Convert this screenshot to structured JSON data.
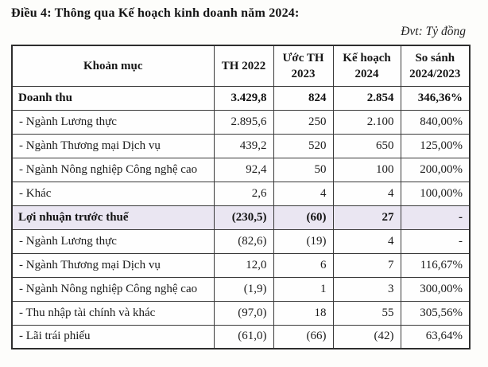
{
  "title": "Điều 4: Thông qua Kế hoạch kinh doanh năm 2024:",
  "unit_note": "Đvt: Tỷ đồng",
  "table": {
    "columns": [
      "Khoản mục",
      "TH 2022",
      "Ước TH 2023",
      "Kế hoạch 2024",
      "So sánh 2024/2023"
    ],
    "rows": [
      {
        "label": "Doanh thu",
        "bold": true,
        "highlight": false,
        "values": [
          "3.429,8",
          "824",
          "2.854",
          "346,36%"
        ]
      },
      {
        "label": "- Ngành Lương thực",
        "bold": false,
        "highlight": false,
        "values": [
          "2.895,6",
          "250",
          "2.100",
          "840,00%"
        ]
      },
      {
        "label": "- Ngành Thương mại Dịch vụ",
        "bold": false,
        "highlight": false,
        "values": [
          "439,2",
          "520",
          "650",
          "125,00%"
        ]
      },
      {
        "label": "- Ngành Nông nghiệp Công nghệ cao",
        "bold": false,
        "highlight": false,
        "values": [
          "92,4",
          "50",
          "100",
          "200,00%"
        ]
      },
      {
        "label": "- Khác",
        "bold": false,
        "highlight": false,
        "values": [
          "2,6",
          "4",
          "4",
          "100,00%"
        ]
      },
      {
        "label": "Lợi nhuận trước thuế",
        "bold": true,
        "highlight": true,
        "values": [
          "(230,5)",
          "(60)",
          "27",
          "-"
        ]
      },
      {
        "label": "- Ngành Lương thực",
        "bold": false,
        "highlight": false,
        "values": [
          "(82,6)",
          "(19)",
          "4",
          "-"
        ]
      },
      {
        "label": "- Ngành Thương mại Dịch vụ",
        "bold": false,
        "highlight": false,
        "values": [
          "12,0",
          "6",
          "7",
          "116,67%"
        ]
      },
      {
        "label": "- Ngành Nông nghiệp Công nghệ cao",
        "bold": false,
        "highlight": false,
        "values": [
          "(1,9)",
          "1",
          "3",
          "300,00%"
        ]
      },
      {
        "label": "- Thu nhập tài chính và khác",
        "bold": false,
        "highlight": false,
        "values": [
          "(97,0)",
          "18",
          "55",
          "305,56%"
        ]
      },
      {
        "label": "- Lãi trái phiếu",
        "bold": false,
        "highlight": false,
        "values": [
          "(61,0)",
          "(66)",
          "(42)",
          "63,64%"
        ]
      }
    ]
  },
  "colors": {
    "border": "#3a3a3a",
    "highlight_row": "#eae6f2",
    "text": "#1c1c1c",
    "page_bg": "#fdfdfb"
  }
}
